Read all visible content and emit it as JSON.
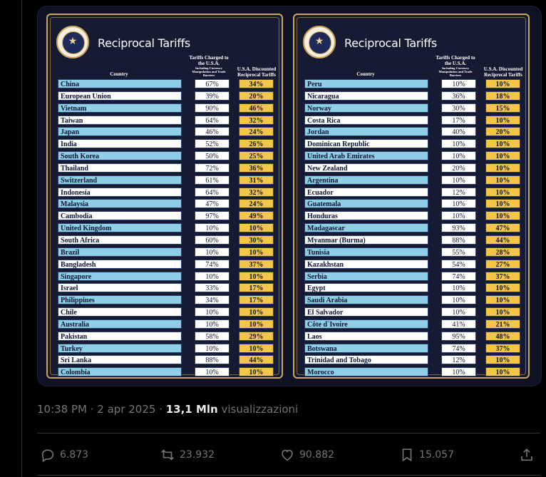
{
  "panels": [
    {
      "title": "Reciprocal Tariffs",
      "header_country": "Country",
      "header_charged": "Tariffs Charged to the U.S.A.",
      "header_charged_sub": "Including Currency Manipulation and Trade Barriers",
      "header_discount": "U.S.A. Discounted Reciprocal Tariffs",
      "rows": [
        {
          "country": "China",
          "charged": "67%",
          "discounted": "34%"
        },
        {
          "country": "European Union",
          "charged": "39%",
          "discounted": "20%"
        },
        {
          "country": "Vietnam",
          "charged": "90%",
          "discounted": "46%"
        },
        {
          "country": "Taiwan",
          "charged": "64%",
          "discounted": "32%"
        },
        {
          "country": "Japan",
          "charged": "46%",
          "discounted": "24%"
        },
        {
          "country": "India",
          "charged": "52%",
          "discounted": "26%"
        },
        {
          "country": "South Korea",
          "charged": "50%",
          "discounted": "25%"
        },
        {
          "country": "Thailand",
          "charged": "72%",
          "discounted": "36%"
        },
        {
          "country": "Switzerland",
          "charged": "61%",
          "discounted": "31%"
        },
        {
          "country": "Indonesia",
          "charged": "64%",
          "discounted": "32%"
        },
        {
          "country": "Malaysia",
          "charged": "47%",
          "discounted": "24%"
        },
        {
          "country": "Cambodia",
          "charged": "97%",
          "discounted": "49%"
        },
        {
          "country": "United Kingdom",
          "charged": "10%",
          "discounted": "10%"
        },
        {
          "country": "South Africa",
          "charged": "60%",
          "discounted": "30%"
        },
        {
          "country": "Brazil",
          "charged": "10%",
          "discounted": "10%"
        },
        {
          "country": "Bangladesh",
          "charged": "74%",
          "discounted": "37%"
        },
        {
          "country": "Singapore",
          "charged": "10%",
          "discounted": "10%"
        },
        {
          "country": "Israel",
          "charged": "33%",
          "discounted": "17%"
        },
        {
          "country": "Philippines",
          "charged": "34%",
          "discounted": "17%"
        },
        {
          "country": "Chile",
          "charged": "10%",
          "discounted": "10%"
        },
        {
          "country": "Australia",
          "charged": "10%",
          "discounted": "10%"
        },
        {
          "country": "Pakistan",
          "charged": "58%",
          "discounted": "29%"
        },
        {
          "country": "Turkey",
          "charged": "10%",
          "discounted": "10%"
        },
        {
          "country": "Sri Lanka",
          "charged": "88%",
          "discounted": "44%"
        },
        {
          "country": "Colombia",
          "charged": "10%",
          "discounted": "10%"
        }
      ]
    },
    {
      "title": "Reciprocal Tariffs",
      "header_country": "Country",
      "header_charged": "Tariffs Charged to the U.S.A.",
      "header_charged_sub": "Including Currency Manipulation and Trade Barriers",
      "header_discount": "U.S.A. Discounted Reciprocal Tariffs",
      "rows": [
        {
          "country": "Peru",
          "charged": "10%",
          "discounted": "10%"
        },
        {
          "country": "Nicaragua",
          "charged": "36%",
          "discounted": "18%"
        },
        {
          "country": "Norway",
          "charged": "30%",
          "discounted": "15%"
        },
        {
          "country": "Costa Rica",
          "charged": "17%",
          "discounted": "10%"
        },
        {
          "country": "Jordan",
          "charged": "40%",
          "discounted": "20%"
        },
        {
          "country": "Dominican Republic",
          "charged": "10%",
          "discounted": "10%"
        },
        {
          "country": "United Arab Emirates",
          "charged": "10%",
          "discounted": "10%"
        },
        {
          "country": "New Zealand",
          "charged": "20%",
          "discounted": "10%"
        },
        {
          "country": "Argentina",
          "charged": "10%",
          "discounted": "10%"
        },
        {
          "country": "Ecuador",
          "charged": "12%",
          "discounted": "10%"
        },
        {
          "country": "Guatemala",
          "charged": "10%",
          "discounted": "10%"
        },
        {
          "country": "Honduras",
          "charged": "10%",
          "discounted": "10%"
        },
        {
          "country": "Madagascar",
          "charged": "93%",
          "discounted": "47%"
        },
        {
          "country": "Myanmar (Burma)",
          "charged": "88%",
          "discounted": "44%"
        },
        {
          "country": "Tunisia",
          "charged": "55%",
          "discounted": "28%"
        },
        {
          "country": "Kazakhstan",
          "charged": "54%",
          "discounted": "27%"
        },
        {
          "country": "Serbia",
          "charged": "74%",
          "discounted": "37%"
        },
        {
          "country": "Egypt",
          "charged": "10%",
          "discounted": "10%"
        },
        {
          "country": "Saudi Arabia",
          "charged": "10%",
          "discounted": "10%"
        },
        {
          "country": "El Salvador",
          "charged": "10%",
          "discounted": "10%"
        },
        {
          "country": "Côte d`Ivoire",
          "charged": "41%",
          "discounted": "21%"
        },
        {
          "country": "Laos",
          "charged": "95%",
          "discounted": "48%"
        },
        {
          "country": "Botswana",
          "charged": "74%",
          "discounted": "37%"
        },
        {
          "country": "Trinidad and Tobago",
          "charged": "12%",
          "discounted": "10%"
        },
        {
          "country": "Morocco",
          "charged": "10%",
          "discounted": "10%"
        }
      ]
    }
  ],
  "tweet": {
    "time": "10:38 PM · 2 apr 2025 · ",
    "views_count": "13,1 Mln",
    "views_label": " visualizzazioni",
    "replies": "6.873",
    "reposts": "23.932",
    "likes": "90.882",
    "bookmarks": "15.057"
  },
  "icons": {
    "reply": "reply-icon",
    "repost": "repost-icon",
    "like": "heart-icon",
    "bookmark": "bookmark-icon",
    "share": "share-icon"
  },
  "colors": {
    "background": "#000000",
    "panel": "#161b33",
    "gold": "#c9a65a",
    "row_blue": "#8fcfe6",
    "discount_yellow": "#f3c64a"
  }
}
